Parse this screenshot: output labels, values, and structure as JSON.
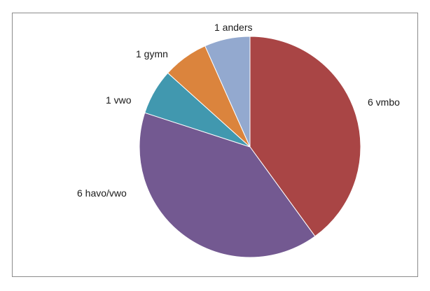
{
  "chart_data": {
    "type": "pie",
    "title": "",
    "slices": [
      {
        "label": "6 vmbo",
        "category": "vmbo",
        "value": 6,
        "color": "#A94545"
      },
      {
        "label": "6 havo/vwo",
        "category": "havo/vwo",
        "value": 6,
        "color": "#735991"
      },
      {
        "label": "1 vwo",
        "category": "vwo",
        "value": 1,
        "color": "#4198AF"
      },
      {
        "label": "1 gymn",
        "category": "gymn",
        "value": 1,
        "color": "#DB843D"
      },
      {
        "label": "1 anders",
        "category": "anders",
        "value": 1,
        "color": "#93A9CF"
      }
    ],
    "start_angle": "12 o'clock",
    "direction": "clockwise",
    "legend": "none",
    "slice_edge_color": "#ffffff"
  }
}
